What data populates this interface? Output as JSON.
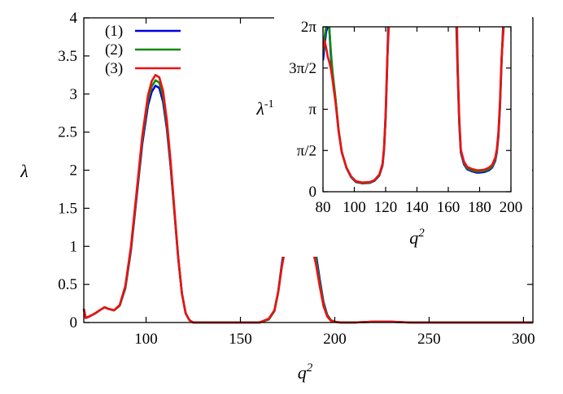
{
  "chart_data": [
    {
      "type": "line",
      "xlabel_base": "q",
      "xlabel_sup": "2",
      "ylabel": "λ",
      "xlim": [
        67,
        305
      ],
      "ylim": [
        0,
        4
      ],
      "grid": false,
      "legend_placement": "top-left",
      "x_ticks": [
        {
          "value": 100,
          "label": "100"
        },
        {
          "value": 150,
          "label": "150"
        },
        {
          "value": 200,
          "label": "200"
        },
        {
          "value": 250,
          "label": "250"
        },
        {
          "value": 300,
          "label": "300"
        }
      ],
      "y_ticks": [
        {
          "value": 0,
          "label": "0"
        },
        {
          "value": 0.5,
          "label": "0.5"
        },
        {
          "value": 1,
          "label": "1"
        },
        {
          "value": 1.5,
          "label": "1.5"
        },
        {
          "value": 2,
          "label": "2"
        },
        {
          "value": 2.5,
          "label": "2.5"
        },
        {
          "value": 3,
          "label": "3"
        },
        {
          "value": 3.5,
          "label": "3.5"
        },
        {
          "value": 4,
          "label": "4"
        }
      ],
      "series": [
        {
          "name": "(1)",
          "color": "#0000dd",
          "x": [
            67,
            68,
            70,
            73,
            76,
            78,
            80,
            83,
            86,
            89,
            92,
            95,
            98,
            101,
            103,
            105,
            107,
            109,
            111,
            113,
            115,
            117,
            119,
            121,
            123,
            125,
            128,
            132,
            140,
            150,
            160,
            165,
            168,
            170,
            172,
            174,
            176,
            178,
            180,
            182,
            184,
            186,
            188,
            190,
            192,
            194,
            196,
            198,
            200,
            203,
            210,
            220,
            230,
            240,
            260,
            280,
            305
          ],
          "y": [
            0.18,
            0.06,
            0.08,
            0.12,
            0.17,
            0.2,
            0.18,
            0.16,
            0.22,
            0.45,
            0.95,
            1.65,
            2.35,
            2.85,
            3.03,
            3.11,
            3.08,
            2.9,
            2.55,
            2.05,
            1.45,
            0.85,
            0.38,
            0.12,
            0.03,
            0.0,
            0.0,
            0.0,
            0.0,
            0.0,
            0.0,
            0.04,
            0.15,
            0.4,
            0.78,
            1.08,
            1.25,
            1.33,
            1.37,
            1.36,
            1.33,
            1.26,
            1.13,
            0.9,
            0.57,
            0.27,
            0.1,
            0.03,
            0.01,
            0.0,
            0.0,
            0.01,
            0.01,
            0.0,
            0.0,
            0.0,
            0.0
          ]
        },
        {
          "name": "(2)",
          "color": "#118811",
          "x": [
            67,
            68,
            70,
            73,
            76,
            78,
            80,
            83,
            86,
            89,
            92,
            95,
            98,
            101,
            103,
            105,
            107,
            109,
            111,
            113,
            115,
            117,
            119,
            121,
            123,
            125,
            128,
            132,
            140,
            150,
            160,
            165,
            168,
            170,
            172,
            174,
            176,
            178,
            180,
            182,
            184,
            186,
            188,
            190,
            192,
            194,
            196,
            198,
            200,
            203,
            210,
            220,
            230,
            240,
            260,
            280,
            305
          ],
          "y": [
            0.18,
            0.06,
            0.08,
            0.12,
            0.17,
            0.2,
            0.18,
            0.16,
            0.22,
            0.46,
            0.97,
            1.68,
            2.4,
            2.92,
            3.1,
            3.18,
            3.15,
            2.97,
            2.6,
            2.08,
            1.47,
            0.86,
            0.38,
            0.12,
            0.03,
            0.0,
            0.0,
            0.0,
            0.0,
            0.0,
            0.0,
            0.04,
            0.15,
            0.39,
            0.75,
            1.03,
            1.19,
            1.26,
            1.29,
            1.29,
            1.26,
            1.19,
            1.06,
            0.84,
            0.53,
            0.25,
            0.09,
            0.03,
            0.01,
            0.0,
            0.0,
            0.01,
            0.01,
            0.0,
            0.0,
            0.0,
            0.0
          ]
        },
        {
          "name": "(3)",
          "color": "#ee1111",
          "x": [
            67,
            68,
            70,
            73,
            76,
            78,
            80,
            83,
            86,
            89,
            92,
            95,
            98,
            101,
            103,
            105,
            107,
            109,
            111,
            113,
            115,
            117,
            119,
            121,
            123,
            125,
            128,
            132,
            140,
            150,
            160,
            165,
            168,
            170,
            172,
            174,
            176,
            178,
            180,
            182,
            184,
            186,
            188,
            190,
            192,
            194,
            196,
            198,
            200,
            203,
            210,
            220,
            230,
            240,
            260,
            280,
            305
          ],
          "y": [
            0.18,
            0.06,
            0.08,
            0.12,
            0.17,
            0.2,
            0.18,
            0.16,
            0.23,
            0.48,
            1.0,
            1.72,
            2.45,
            2.98,
            3.17,
            3.25,
            3.22,
            3.04,
            2.66,
            2.12,
            1.49,
            0.87,
            0.38,
            0.12,
            0.03,
            0.0,
            0.0,
            0.0,
            0.0,
            0.0,
            0.0,
            0.05,
            0.16,
            0.4,
            0.74,
            1.0,
            1.14,
            1.2,
            1.22,
            1.21,
            1.18,
            1.11,
            0.98,
            0.77,
            0.48,
            0.22,
            0.08,
            0.02,
            0.01,
            0.0,
            0.0,
            0.01,
            0.01,
            0.0,
            0.0,
            0.0,
            0.0
          ]
        }
      ]
    },
    {
      "type": "line",
      "xlabel_base": "q",
      "xlabel_sup": "2",
      "ylabel_base": "λ",
      "ylabel_sup": "-1",
      "xlim": [
        80,
        200
      ],
      "ylim": [
        0,
        6.2832
      ],
      "grid": false,
      "x_ticks": [
        {
          "value": 80,
          "label": "80"
        },
        {
          "value": 100,
          "label": "100"
        },
        {
          "value": 120,
          "label": "120"
        },
        {
          "value": 140,
          "label": "140"
        },
        {
          "value": 160,
          "label": "160"
        },
        {
          "value": 180,
          "label": "180"
        },
        {
          "value": 200,
          "label": "200"
        }
      ],
      "y_ticks": [
        {
          "value": 0,
          "label": "0"
        },
        {
          "value": 1.5708,
          "label": "π/2"
        },
        {
          "value": 3.1416,
          "label": "π"
        },
        {
          "value": 4.7124,
          "label": "3π/2"
        },
        {
          "value": 6.2832,
          "label": "2π"
        }
      ],
      "series": [
        {
          "name": "(1)",
          "color": "#0000dd",
          "segments": [
            {
              "x": [
                80,
                81,
                82,
                83,
                84
              ],
              "y": [
                5.0,
                5.6,
                6.1,
                6.2832,
                6.2832
              ]
            },
            {
              "x": [
                84,
                85,
                86,
                88,
                90,
                92,
                95,
                98,
                101,
                105,
                110,
                113,
                116,
                118,
                119,
                120,
                121,
                121.6
              ],
              "y": [
                6.2832,
                5.2,
                4.54,
                3.5,
                2.3,
                1.5,
                0.9,
                0.55,
                0.37,
                0.32,
                0.34,
                0.42,
                0.62,
                1.0,
                1.6,
                2.8,
                4.8,
                6.2832
              ]
            },
            {
              "x": [
                165.2,
                166,
                167,
                168,
                170,
                172,
                175,
                178,
                180,
                183,
                186,
                188,
                190,
                191,
                192,
                193,
                194,
                195
              ],
              "y": [
                6.2832,
                4.5,
                2.6,
                1.5,
                1.05,
                0.86,
                0.78,
                0.73,
                0.73,
                0.75,
                0.82,
                0.92,
                1.18,
                1.5,
                2.1,
                3.2,
                4.9,
                6.2832
              ]
            }
          ]
        },
        {
          "name": "(2)",
          "color": "#118811",
          "segments": [
            {
              "x": [
                80,
                81,
                82,
                83,
                84
              ],
              "y": [
                5.3,
                5.9,
                6.2832,
                6.2832,
                6.2832
              ]
            },
            {
              "x": [
                84,
                85,
                86,
                88,
                90,
                92,
                95,
                98,
                101,
                105,
                110,
                113,
                116,
                118,
                119,
                120,
                121,
                121.8
              ],
              "y": [
                6.2832,
                5.35,
                4.62,
                3.55,
                2.35,
                1.52,
                0.91,
                0.56,
                0.38,
                0.33,
                0.35,
                0.43,
                0.64,
                1.03,
                1.65,
                2.9,
                4.9,
                6.2832
              ]
            },
            {
              "x": [
                165.4,
                166,
                167,
                168,
                170,
                172,
                175,
                178,
                180,
                183,
                186,
                188,
                190,
                191,
                192,
                193,
                194,
                195.2
              ],
              "y": [
                6.2832,
                4.6,
                2.7,
                1.55,
                1.1,
                0.9,
                0.82,
                0.77,
                0.77,
                0.79,
                0.86,
                0.96,
                1.23,
                1.56,
                2.2,
                3.3,
                5.0,
                6.2832
              ]
            }
          ]
        },
        {
          "name": "(3)",
          "color": "#ee1111",
          "segments": [
            {
              "x": [
                80,
                81,
                82,
                83,
                84,
                85,
                86,
                88,
                90,
                92,
                95,
                98,
                101,
                105,
                110,
                113,
                116,
                118,
                119,
                120,
                121,
                122
              ],
              "y": [
                5.45,
                5.75,
                5.5,
                5.15,
                4.95,
                4.7,
                4.3,
                3.4,
                2.3,
                1.5,
                0.92,
                0.58,
                0.4,
                0.35,
                0.37,
                0.45,
                0.66,
                1.06,
                1.7,
                3.0,
                5.0,
                6.2832
              ]
            },
            {
              "x": [
                165.6,
                166,
                167,
                168,
                170,
                172,
                175,
                178,
                180,
                183,
                186,
                188,
                190,
                191,
                192,
                193,
                194,
                195.4
              ],
              "y": [
                6.2832,
                4.8,
                2.8,
                1.6,
                1.15,
                0.95,
                0.87,
                0.82,
                0.82,
                0.84,
                0.92,
                1.02,
                1.3,
                1.62,
                2.25,
                3.4,
                5.1,
                6.2832
              ]
            }
          ]
        }
      ]
    }
  ]
}
